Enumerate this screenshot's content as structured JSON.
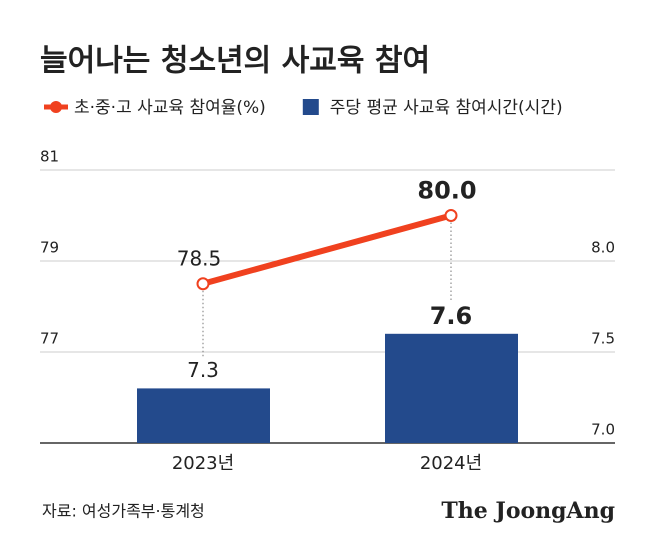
{
  "chart_data": {
    "type": "combo",
    "title": "늘어나는 청소년의 사교육 참여",
    "categories": [
      "2023년",
      "2024년"
    ],
    "series": [
      {
        "name": "초·중·고 사교육 참여율(%)",
        "type": "line",
        "color": "#f0411f",
        "values": [
          78.5,
          80.0
        ],
        "value_labels": [
          "78.5",
          "80.0"
        ]
      },
      {
        "name": "주당 평균 사교육 참여시간(시간)",
        "type": "bar",
        "color": "#234a8c",
        "values": [
          7.3,
          7.6
        ],
        "axis": "y2"
      }
    ],
    "ylim": [
      75,
      81
    ],
    "yticks": [
      77,
      79,
      81
    ],
    "y2lim": [
      7.0,
      8.5
    ],
    "y2ticks": [
      {
        "value": 7,
        "label": "7.0"
      },
      7.5,
      {
        "value": 8,
        "label": "8.0"
      }
    ],
    "grid": true,
    "source": "자료: 여성가족부·통계청",
    "credit": "The JoongAng"
  }
}
